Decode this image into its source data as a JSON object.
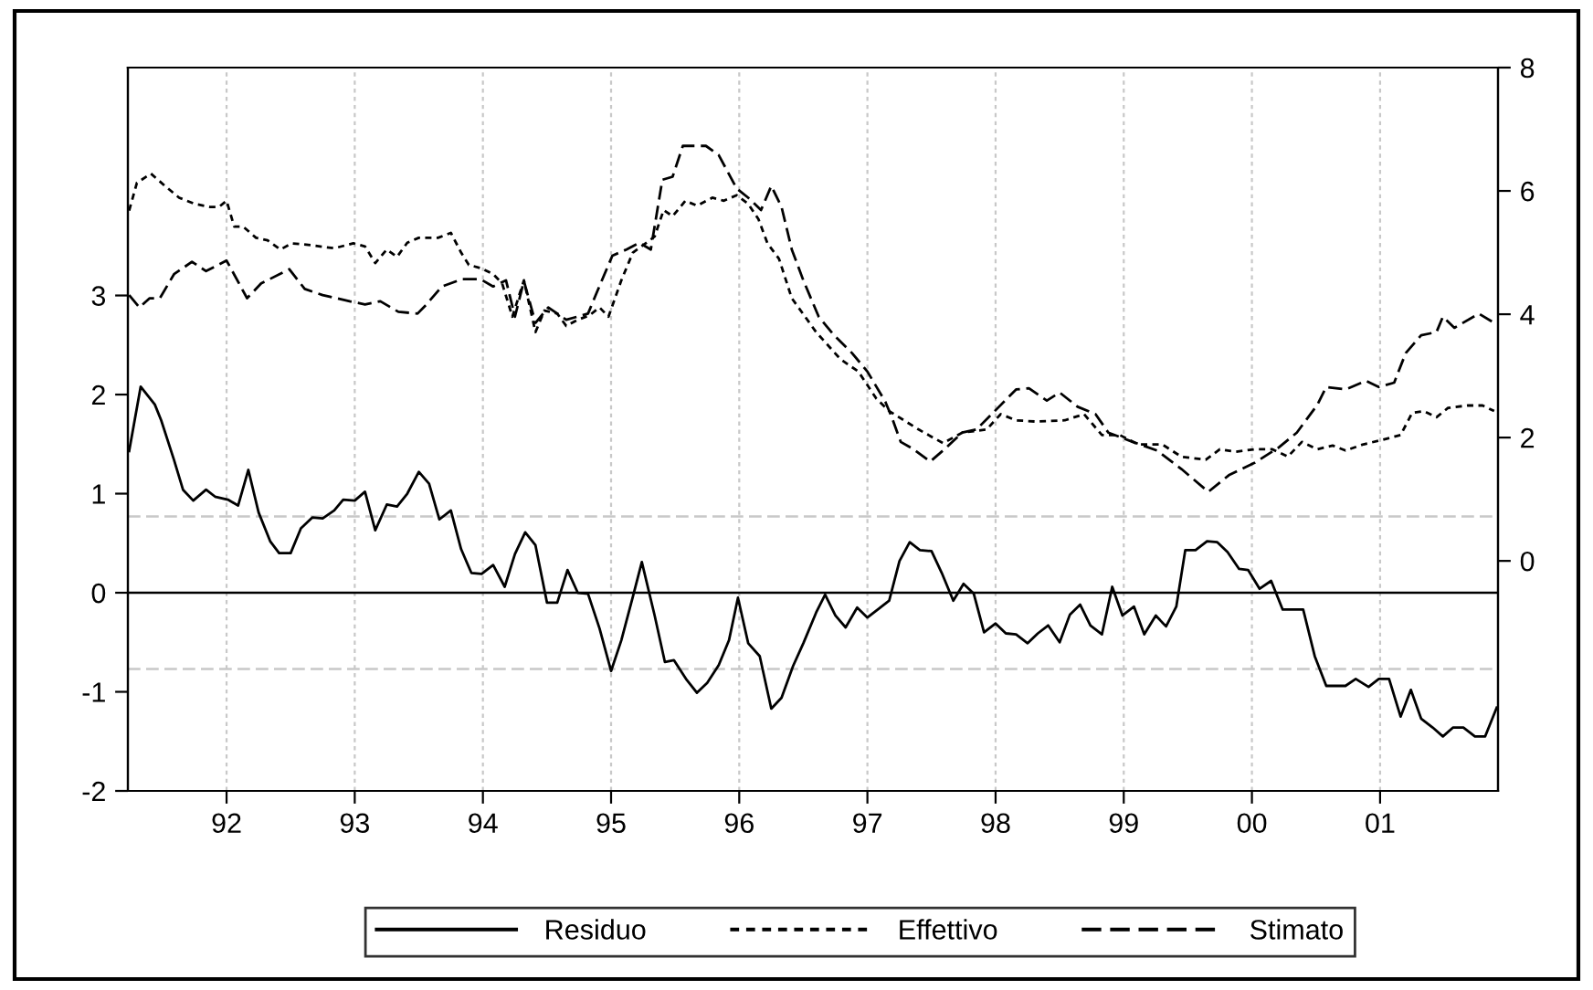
{
  "chart_data": {
    "type": "line",
    "xlim": [
      1991.23,
      2001.92
    ],
    "xticks": [
      {
        "value": 1992,
        "label": "92"
      },
      {
        "value": 1993,
        "label": "93"
      },
      {
        "value": 1994,
        "label": "94"
      },
      {
        "value": 1995,
        "label": "95"
      },
      {
        "value": 1996,
        "label": "96"
      },
      {
        "value": 1997,
        "label": "97"
      },
      {
        "value": 1998,
        "label": "98"
      },
      {
        "value": 1999,
        "label": "99"
      },
      {
        "value": 2000,
        "label": "00"
      },
      {
        "value": 2001,
        "label": "01"
      }
    ],
    "ylim": [
      -2,
      5.3
    ],
    "yticks": [
      -2,
      -1,
      0,
      1,
      2,
      3
    ],
    "y2lim": [
      -3.73,
      8
    ],
    "y2ticks": [
      0,
      2,
      4,
      6,
      8
    ],
    "grid": "x",
    "legend": "bottom",
    "ref_lines": [
      {
        "axis": "y",
        "value": 0,
        "color": "#000000",
        "line_style": "solid"
      },
      {
        "axis": "y",
        "value": 0.77,
        "color": "#c8c8c8",
        "line_style": "dashed"
      },
      {
        "axis": "y",
        "value": -0.77,
        "color": "#c8c8c8",
        "line_style": "dashed"
      }
    ],
    "series": [
      {
        "name": "Residuo",
        "color": "#000000",
        "line_style": "solid",
        "axis": "y",
        "x": [
          1991.24,
          1991.33,
          1991.44,
          1991.49,
          1991.59,
          1991.66,
          1991.74,
          1991.84,
          1991.91,
          1992.01,
          1992.09,
          1992.17,
          1992.25,
          1992.34,
          1992.41,
          1992.5,
          1992.58,
          1992.67,
          1992.75,
          1992.84,
          1992.91,
          1993.0,
          1993.08,
          1993.16,
          1993.25,
          1993.33,
          1993.41,
          1993.5,
          1993.58,
          1993.66,
          1993.75,
          1993.83,
          1993.91,
          1993.99,
          1994.08,
          1994.17,
          1994.25,
          1994.33,
          1994.41,
          1994.5,
          1994.58,
          1994.66,
          1994.74,
          1994.82,
          1994.91,
          1995.0,
          1995.08,
          1995.17,
          1995.24,
          1995.34,
          1995.42,
          1995.49,
          1995.59,
          1995.67,
          1995.75,
          1995.84,
          1995.92,
          1995.99,
          1996.07,
          1996.16,
          1996.25,
          1996.33,
          1996.42,
          1996.5,
          1996.6,
          1996.67,
          1996.75,
          1996.83,
          1996.92,
          1997.0,
          1997.09,
          1997.17,
          1997.25,
          1997.33,
          1997.41,
          1997.5,
          1997.58,
          1997.67,
          1997.75,
          1997.83,
          1997.91,
          1998.0,
          1998.08,
          1998.16,
          1998.25,
          1998.33,
          1998.41,
          1998.5,
          1998.58,
          1998.66,
          1998.74,
          1998.83,
          1998.91,
          1998.99,
          1999.08,
          1999.16,
          1999.25,
          1999.33,
          1999.41,
          1999.48,
          1999.56,
          1999.65,
          1999.73,
          1999.81,
          1999.9,
          1999.97,
          2000.06,
          2000.15,
          2000.24,
          2000.4,
          2000.49,
          2000.58,
          2000.73,
          2000.81,
          2000.91,
          2000.99,
          2001.07,
          2001.16,
          2001.24,
          2001.32,
          2001.41,
          2001.49,
          2001.57,
          2001.65,
          2001.74,
          2001.82,
          2001.91
        ],
        "values": [
          1.43,
          2.08,
          1.9,
          1.74,
          1.34,
          1.04,
          0.93,
          1.04,
          0.97,
          0.94,
          0.88,
          1.24,
          0.81,
          0.52,
          0.4,
          0.4,
          0.65,
          0.76,
          0.75,
          0.83,
          0.94,
          0.93,
          1.02,
          0.63,
          0.89,
          0.87,
          1.0,
          1.22,
          1.1,
          0.74,
          0.83,
          0.44,
          0.2,
          0.19,
          0.28,
          0.06,
          0.39,
          0.61,
          0.48,
          -0.1,
          -0.1,
          0.23,
          0.0,
          -0.01,
          -0.36,
          -0.79,
          -0.48,
          -0.04,
          0.31,
          -0.23,
          -0.7,
          -0.68,
          -0.88,
          -1.01,
          -0.91,
          -0.73,
          -0.48,
          -0.05,
          -0.51,
          -0.64,
          -1.17,
          -1.06,
          -0.74,
          -0.51,
          -0.2,
          -0.02,
          -0.23,
          -0.35,
          -0.15,
          -0.25,
          -0.16,
          -0.08,
          0.32,
          0.51,
          0.43,
          0.42,
          0.2,
          -0.08,
          0.09,
          -0.01,
          -0.4,
          -0.31,
          -0.41,
          -0.42,
          -0.51,
          -0.41,
          -0.33,
          -0.5,
          -0.22,
          -0.12,
          -0.33,
          -0.42,
          0.06,
          -0.23,
          -0.14,
          -0.42,
          -0.23,
          -0.34,
          -0.14,
          0.43,
          0.43,
          0.52,
          0.51,
          0.41,
          0.24,
          0.23,
          0.04,
          0.12,
          -0.17,
          -0.17,
          -0.64,
          -0.94,
          -0.94,
          -0.87,
          -0.95,
          -0.87,
          -0.87,
          -1.25,
          -0.98,
          -1.27,
          -1.36,
          -1.45,
          -1.36,
          -1.36,
          -1.45,
          -1.45,
          -1.16
        ]
      },
      {
        "name": "Effettivo",
        "color": "#000000",
        "line_style": "dotted",
        "axis": "y2",
        "x": [
          1991.24,
          1991.3,
          1991.41,
          1991.52,
          1991.63,
          1991.75,
          1991.87,
          1991.94,
          1992.0,
          1992.06,
          1992.13,
          1992.23,
          1992.32,
          1992.42,
          1992.51,
          1992.66,
          1992.84,
          1992.99,
          1993.08,
          1993.16,
          1993.25,
          1993.33,
          1993.41,
          1993.5,
          1993.65,
          1993.75,
          1993.83,
          1993.89,
          1993.98,
          1994.08,
          1994.15,
          1994.23,
          1994.32,
          1994.41,
          1994.48,
          1994.58,
          1994.65,
          1994.74,
          1994.83,
          1994.91,
          1994.98,
          1995.08,
          1995.17,
          1995.27,
          1995.34,
          1995.41,
          1995.48,
          1995.58,
          1995.67,
          1995.79,
          1995.88,
          1995.98,
          1996.07,
          1996.15,
          1996.22,
          1996.31,
          1996.41,
          1996.6,
          1996.79,
          1996.93,
          1997.07,
          1997.17,
          1997.4,
          1997.59,
          1997.74,
          1997.93,
          1998.04,
          1998.16,
          1998.31,
          1998.54,
          1998.69,
          1998.83,
          1998.97,
          1999.11,
          1999.3,
          1999.45,
          1999.64,
          1999.75,
          1999.87,
          2000.02,
          2000.16,
          2000.28,
          2000.39,
          2000.51,
          2000.63,
          2000.73,
          2000.87,
          2001.01,
          2001.16,
          2001.25,
          2001.34,
          2001.44,
          2001.53,
          2001.68,
          2001.8,
          2001.89
        ],
        "values": [
          5.68,
          6.13,
          6.28,
          6.08,
          5.89,
          5.79,
          5.74,
          5.74,
          5.84,
          5.42,
          5.42,
          5.24,
          5.2,
          5.05,
          5.15,
          5.12,
          5.07,
          5.15,
          5.1,
          4.83,
          5.05,
          4.93,
          5.16,
          5.24,
          5.24,
          5.32,
          5.0,
          4.8,
          4.75,
          4.65,
          4.5,
          3.96,
          4.55,
          3.71,
          4.06,
          4.01,
          3.81,
          3.91,
          3.98,
          4.11,
          3.96,
          4.55,
          5.0,
          5.15,
          5.26,
          5.69,
          5.59,
          5.84,
          5.76,
          5.89,
          5.84,
          5.93,
          5.79,
          5.54,
          5.15,
          4.9,
          4.26,
          3.71,
          3.27,
          3.07,
          2.63,
          2.43,
          2.13,
          1.91,
          2.08,
          2.13,
          2.38,
          2.28,
          2.26,
          2.28,
          2.38,
          2.04,
          2.04,
          1.89,
          1.89,
          1.69,
          1.64,
          1.81,
          1.77,
          1.81,
          1.81,
          1.69,
          1.93,
          1.81,
          1.87,
          1.79,
          1.89,
          1.96,
          2.04,
          2.4,
          2.43,
          2.33,
          2.48,
          2.52,
          2.52,
          2.43
        ]
      },
      {
        "name": "Stimato",
        "color": "#000000",
        "line_style": "dashed",
        "axis": "y2",
        "x": [
          1991.24,
          1991.32,
          1991.4,
          1991.48,
          1991.59,
          1991.73,
          1991.84,
          1992.0,
          1992.16,
          1992.27,
          1992.49,
          1992.61,
          1992.75,
          1992.96,
          1993.08,
          1993.2,
          1993.34,
          1993.49,
          1993.56,
          1993.68,
          1993.84,
          1993.98,
          1994.08,
          1994.18,
          1994.25,
          1994.32,
          1994.41,
          1994.51,
          1994.65,
          1994.82,
          1994.89,
          1995.01,
          1995.12,
          1995.22,
          1995.31,
          1995.4,
          1995.48,
          1995.56,
          1995.74,
          1995.84,
          1995.98,
          1996.07,
          1996.17,
          1996.25,
          1996.33,
          1996.41,
          1996.5,
          1996.62,
          1996.74,
          1996.88,
          1997.0,
          1997.14,
          1997.19,
          1997.26,
          1997.36,
          1997.49,
          1997.59,
          1997.74,
          1997.85,
          1997.97,
          1998.16,
          1998.26,
          1998.4,
          1998.5,
          1998.64,
          1998.78,
          1998.88,
          1999.07,
          1999.26,
          1999.45,
          1999.66,
          1999.82,
          2000.02,
          2000.21,
          2000.35,
          2000.51,
          2000.58,
          2000.73,
          2000.89,
          2000.99,
          2001.11,
          2001.2,
          2001.32,
          2001.44,
          2001.49,
          2001.58,
          2001.77,
          2001.89
        ],
        "values": [
          4.31,
          4.11,
          4.26,
          4.26,
          4.65,
          4.85,
          4.7,
          4.87,
          4.26,
          4.5,
          4.73,
          4.41,
          4.31,
          4.21,
          4.16,
          4.21,
          4.04,
          4.01,
          4.16,
          4.45,
          4.57,
          4.57,
          4.45,
          4.55,
          3.96,
          4.54,
          3.86,
          4.11,
          3.91,
          4.01,
          4.36,
          4.95,
          5.05,
          5.16,
          5.05,
          6.18,
          6.23,
          6.73,
          6.73,
          6.58,
          6.04,
          5.89,
          5.69,
          6.08,
          5.74,
          5.05,
          4.55,
          3.96,
          3.66,
          3.37,
          3.07,
          2.58,
          2.33,
          1.93,
          1.81,
          1.61,
          1.79,
          2.08,
          2.13,
          2.38,
          2.78,
          2.8,
          2.6,
          2.73,
          2.5,
          2.38,
          2.08,
          1.93,
          1.79,
          1.49,
          1.12,
          1.39,
          1.59,
          1.84,
          2.08,
          2.53,
          2.82,
          2.78,
          2.92,
          2.82,
          2.89,
          3.37,
          3.66,
          3.71,
          3.96,
          3.78,
          4.01,
          3.86
        ]
      }
    ]
  }
}
